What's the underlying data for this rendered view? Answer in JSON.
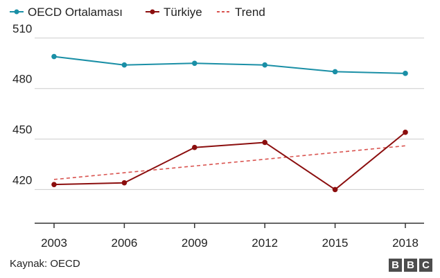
{
  "chart_data": {
    "type": "line",
    "categories": [
      "2003",
      "2006",
      "2009",
      "2012",
      "2015",
      "2018"
    ],
    "series": [
      {
        "name": "OECD Ortalaması",
        "values": [
          499,
          494,
          495,
          494,
          490,
          489
        ],
        "color": "#1a8fa6",
        "style": "solid",
        "markers": true
      },
      {
        "name": "Türkiye",
        "values": [
          423,
          424,
          445,
          448,
          420,
          454
        ],
        "color": "#8b0e0e",
        "style": "solid",
        "markers": true
      },
      {
        "name": "Trend",
        "values": [
          426,
          430,
          434,
          438,
          442,
          446
        ],
        "color": "#d9534f",
        "style": "dashed",
        "markers": false
      }
    ],
    "yticks": [
      "510",
      "480",
      "450",
      "420"
    ],
    "ylim": [
      400,
      512
    ],
    "grid": true,
    "legend_position": "top"
  },
  "footer": {
    "source": "Kaynak: OECD",
    "logo": [
      "B",
      "B",
      "C"
    ]
  }
}
